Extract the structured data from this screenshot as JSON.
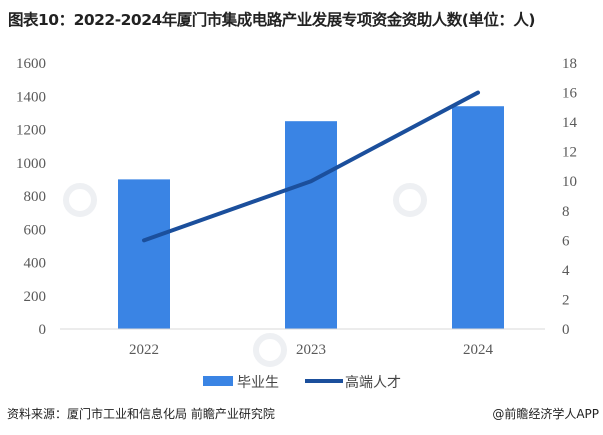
{
  "title": "图表10：2022-2024年厦门市集成电路产业发展专项资金资助人数(单位：人)",
  "source": "资料来源：厦门市工业和信息化局 前瞻产业研究院",
  "credit": "@前瞻经济学人APP",
  "watermark": "前瞻产业研究院",
  "colors": {
    "bar": "#3a84e4",
    "line": "#1b4f9c"
  },
  "chart_data": {
    "type": "bar+line",
    "categories": [
      "2022",
      "2023",
      "2024"
    ],
    "series": [
      {
        "name": "毕业生",
        "type": "bar",
        "axis": "left",
        "values": [
          900,
          1250,
          1340
        ]
      },
      {
        "name": "高端人才",
        "type": "line",
        "axis": "right",
        "values": [
          6,
          10,
          16
        ]
      }
    ],
    "y_left": {
      "range": [
        0,
        1600
      ],
      "ticks": [
        "0",
        "200",
        "400",
        "600",
        "800",
        "1000",
        "1200",
        "1400",
        "1600"
      ]
    },
    "y_right": {
      "range": [
        0,
        18
      ],
      "ticks": [
        "0",
        "2",
        "4",
        "6",
        "8",
        "10",
        "12",
        "14",
        "16",
        "18"
      ]
    },
    "grid": false,
    "legend": "bottom"
  }
}
